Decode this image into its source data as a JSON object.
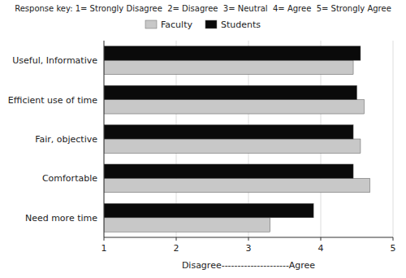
{
  "chart_data": {
    "type": "bar",
    "orientation": "horizontal",
    "title": "Response key: 1= Strongly Disagree  2= Disagree  3= Neutral  4= Agree  5= Strongly Agree",
    "categories": [
      "Useful, Informative",
      "Efficient use of time",
      "Fair, objective",
      "Comfortable",
      "Need more time"
    ],
    "series": [
      {
        "name": "Faculty",
        "color": "#c8c8c8",
        "values": [
          4.45,
          4.6,
          4.55,
          4.68,
          3.3
        ]
      },
      {
        "name": "Students",
        "color": "#0a0a0a",
        "values": [
          4.55,
          4.5,
          4.45,
          4.45,
          3.9
        ]
      }
    ],
    "xlabel": "Disagree---------------------Agree",
    "xlim": [
      1,
      5
    ],
    "xticks": [
      1,
      2,
      3,
      4,
      5
    ],
    "grid": true,
    "legend": "top"
  }
}
